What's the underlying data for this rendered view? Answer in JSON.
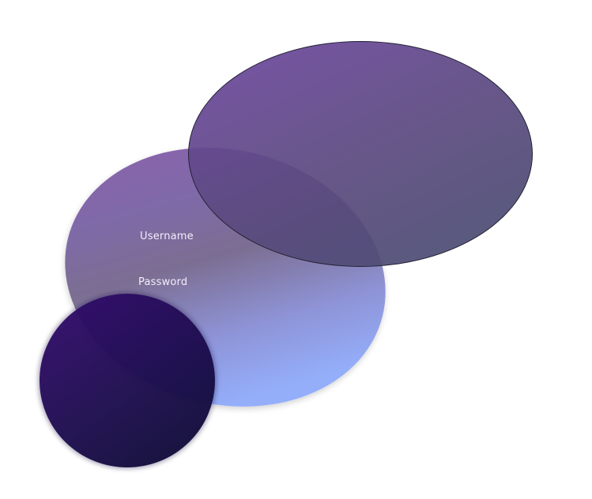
{
  "login_form": {
    "username_label": "Username",
    "password_label": "Password"
  },
  "colors": {
    "background": "#ffffff",
    "login_ellipse_top": "#8f5fae",
    "login_ellipse_bottom": "#94b0ff",
    "top_ellipse": "#6e46a0",
    "dark_circle": "#340a6e",
    "label_text": "#f2eefa"
  }
}
